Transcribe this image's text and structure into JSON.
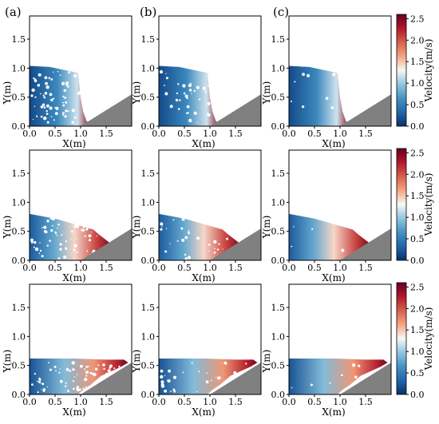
{
  "figure": {
    "column_labels": [
      "(a)",
      "(b)",
      "(c)"
    ],
    "colorbar_label": "Velocity(m/s)",
    "colorbar_ticks": [
      "0.0",
      "0.5",
      "1.0",
      "1.5",
      "2.0",
      "2.5"
    ],
    "colormap": [
      "#08306b",
      "#2166ac",
      "#4393c3",
      "#92c5de",
      "#f7f7f7",
      "#f4a582",
      "#d6604d",
      "#b2182b",
      "#67001f"
    ],
    "obstacle_color": "#808080"
  },
  "chart_data": [
    {
      "type": "heatmap",
      "panel": "row1-col(a)",
      "xlabel": "X(m)",
      "ylabel": "Y(m)",
      "xlim": [
        0,
        2
      ],
      "ylim": [
        0,
        1.9
      ],
      "xticks": [
        "0.0",
        "0.5",
        "1.0",
        "1.5"
      ],
      "yticks": [
        "0.0",
        "0.5",
        "1.0",
        "1.5"
      ],
      "fluid_front_x": 1.15,
      "fluid_height_at_x0": 1.05,
      "max_velocity": 2.5
    },
    {
      "type": "heatmap",
      "panel": "row1-col(b)",
      "xlabel": "X(m)",
      "ylabel": "Y(m)",
      "xlim": [
        0,
        2
      ],
      "ylim": [
        0,
        1.9
      ],
      "xticks": [
        "0.0",
        "0.5",
        "1.0",
        "1.5"
      ],
      "yticks": [
        "0.0",
        "0.5",
        "1.0",
        "1.5"
      ],
      "fluid_front_x": 1.15,
      "fluid_height_at_x0": 1.05,
      "max_velocity": 2.5
    },
    {
      "type": "heatmap",
      "panel": "row1-col(c)",
      "xlabel": "X(m)",
      "ylabel": "Y(m)",
      "xlim": [
        0,
        2
      ],
      "ylim": [
        0,
        1.9
      ],
      "xticks": [
        "0.0",
        "0.5",
        "1.0",
        "1.5"
      ],
      "yticks": [
        "0.0",
        "0.5",
        "1.0",
        "1.5"
      ],
      "fluid_front_x": 1.15,
      "fluid_height_at_x0": 1.05,
      "max_velocity": 2.5
    },
    {
      "type": "heatmap",
      "panel": "row2-col(a)",
      "xlabel": "X(m)",
      "ylabel": "Y(m)",
      "xlim": [
        0,
        2
      ],
      "ylim": [
        0,
        1.9
      ],
      "xticks": [
        "0.0",
        "0.5",
        "1.0",
        "1.5"
      ],
      "yticks": [
        "0.0",
        "0.5",
        "1.0",
        "1.5"
      ],
      "fluid_front_x": 1.6,
      "fluid_height_at_x0": 0.8,
      "max_velocity": 2.5
    },
    {
      "type": "heatmap",
      "panel": "row2-col(b)",
      "xlabel": "X(m)",
      "ylabel": "Y(m)",
      "xlim": [
        0,
        2
      ],
      "ylim": [
        0,
        1.9
      ],
      "xticks": [
        "0.0",
        "0.5",
        "1.0",
        "1.5"
      ],
      "yticks": [
        "0.0",
        "0.5",
        "1.0",
        "1.5"
      ],
      "fluid_front_x": 1.6,
      "fluid_height_at_x0": 0.8,
      "max_velocity": 2.5
    },
    {
      "type": "heatmap",
      "panel": "row2-col(c)",
      "xlabel": "X(m)",
      "ylabel": "Y(m)",
      "xlim": [
        0,
        2
      ],
      "ylim": [
        0,
        1.9
      ],
      "xticks": [
        "0.0",
        "0.5",
        "1.0",
        "1.5"
      ],
      "yticks": [
        "0.0",
        "0.5",
        "1.0",
        "1.5"
      ],
      "fluid_front_x": 1.6,
      "fluid_height_at_x0": 0.8,
      "max_velocity": 2.5
    },
    {
      "type": "heatmap",
      "panel": "row3-col(a)",
      "xlabel": "X(m)",
      "ylabel": "Y(m)",
      "xlim": [
        0,
        2
      ],
      "ylim": [
        0,
        1.9
      ],
      "xticks": [
        "0.0",
        "0.5",
        "1.0",
        "1.5"
      ],
      "yticks": [
        "0.0",
        "0.5",
        "1.0",
        "1.5"
      ],
      "fluid_front_x": 1.95,
      "fluid_height_at_x0": 0.62,
      "max_velocity": 2.5
    },
    {
      "type": "heatmap",
      "panel": "row3-col(b)",
      "xlabel": "X(m)",
      "ylabel": "Y(m)",
      "xlim": [
        0,
        2
      ],
      "ylim": [
        0,
        1.9
      ],
      "xticks": [
        "0.0",
        "0.5",
        "1.0",
        "1.5"
      ],
      "yticks": [
        "0.0",
        "0.5",
        "1.0",
        "1.5"
      ],
      "fluid_front_x": 1.95,
      "fluid_height_at_x0": 0.62,
      "max_velocity": 2.5
    },
    {
      "type": "heatmap",
      "panel": "row3-col(c)",
      "xlabel": "X(m)",
      "ylabel": "Y(m)",
      "xlim": [
        0,
        2
      ],
      "ylim": [
        0,
        1.9
      ],
      "xticks": [
        "0.0",
        "0.5",
        "1.0",
        "1.5"
      ],
      "yticks": [
        "0.0",
        "0.5",
        "1.0",
        "1.5"
      ],
      "fluid_front_x": 1.95,
      "fluid_height_at_x0": 0.62,
      "max_velocity": 2.5
    }
  ]
}
